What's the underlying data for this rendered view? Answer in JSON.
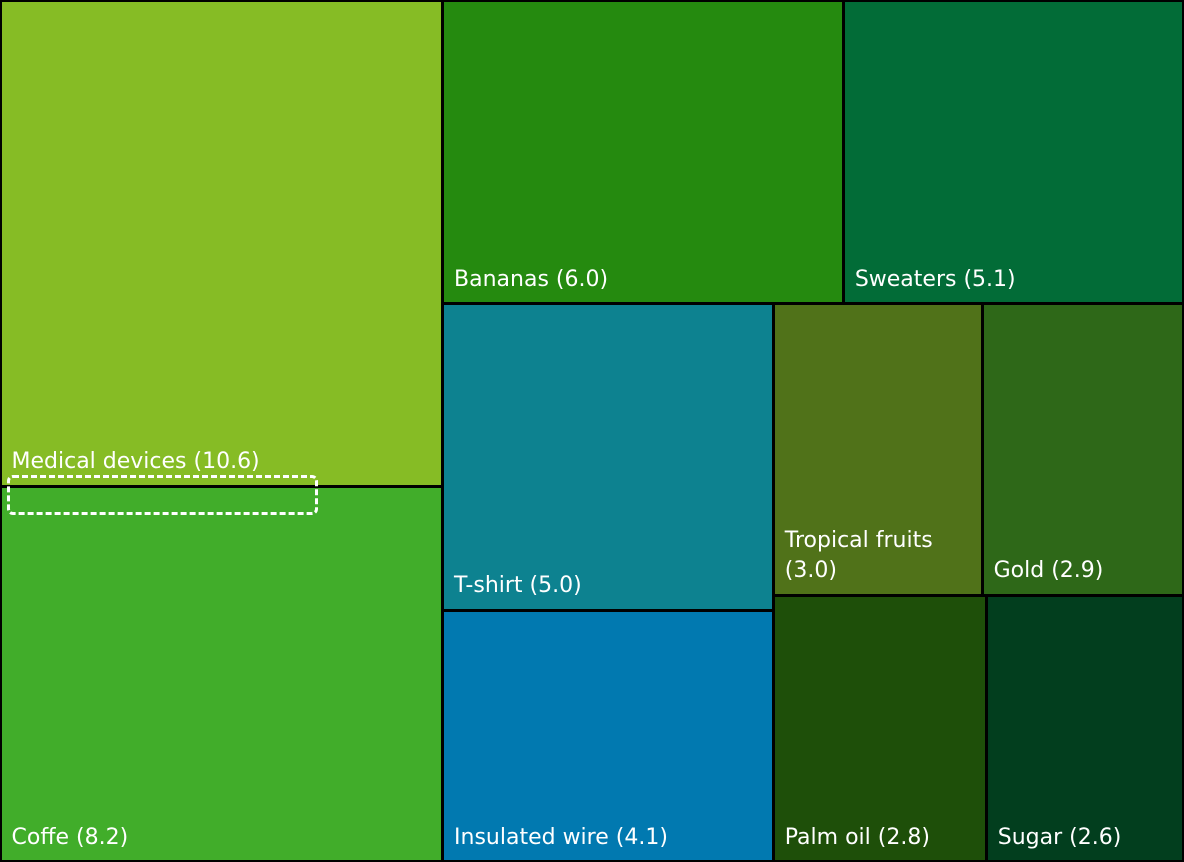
{
  "chart_data": {
    "type": "treemap",
    "categories": [
      "Medical devices (10.6)",
      "Coffe (8.2)",
      "Bananas (6.0)",
      "Sweaters (5.1)",
      "T-shirt (5.0)",
      "Insulated wire (4.1)",
      "Tropical fruits (3.0)",
      "Gold (2.9)",
      "Palm oil (2.8)",
      "Sugar (2.6)"
    ],
    "values": [
      10.6,
      8.2,
      6.0,
      5.1,
      5.0,
      4.1,
      3.0,
      2.9,
      2.8,
      2.6
    ],
    "colors": [
      "#86bc25",
      "#41ad2a",
      "#258a0f",
      "#026c37",
      "#0d8290",
      "#0179b0",
      "#507219",
      "#2e6818",
      "#1e4f09",
      "#023e1e"
    ]
  }
}
